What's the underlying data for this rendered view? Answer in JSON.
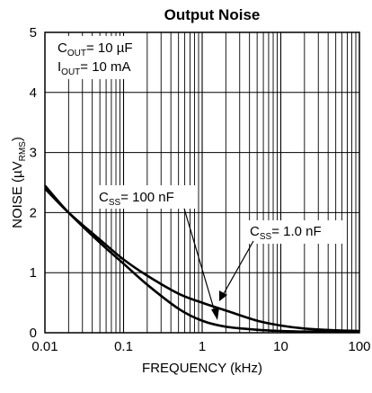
{
  "chart_data": {
    "type": "line",
    "title": "Output Noise",
    "xlabel": "FREQUENCY (kHz)",
    "ylabel": {
      "main": "NOISE (µV",
      "sub": "RMS",
      "end": ")"
    },
    "x_scale": "log",
    "xlim": [
      0.01,
      100
    ],
    "ylim": [
      0,
      5
    ],
    "grid": true,
    "x_ticks": [
      {
        "value": 0.01,
        "label": "0.01"
      },
      {
        "value": 0.1,
        "label": "0.1"
      },
      {
        "value": 1,
        "label": "1"
      },
      {
        "value": 10,
        "label": "10"
      },
      {
        "value": 100,
        "label": "100"
      }
    ],
    "y_ticks": [
      {
        "value": 0,
        "label": "0"
      },
      {
        "value": 1,
        "label": "1"
      },
      {
        "value": 2,
        "label": "2"
      },
      {
        "value": 3,
        "label": "3"
      },
      {
        "value": 4,
        "label": "4"
      },
      {
        "value": 5,
        "label": "5"
      }
    ],
    "conditions": [
      {
        "main": "C",
        "sub": "OUT",
        "rest": "= 10 µF"
      },
      {
        "main": "I",
        "sub": "OUT",
        "rest": "= 10 mA"
      }
    ],
    "series": [
      {
        "name": "C_SS = 100 nF",
        "label": {
          "main": "C",
          "sub": "SS",
          "rest": "= 100 nF"
        },
        "x": [
          0.01,
          0.02,
          0.05,
          0.1,
          0.2,
          0.5,
          1,
          2,
          5,
          10,
          20,
          50,
          100
        ],
        "y": [
          2.45,
          2.0,
          1.5,
          1.15,
          0.8,
          0.4,
          0.2,
          0.1,
          0.05,
          0.03,
          0.02,
          0.02,
          0.02
        ]
      },
      {
        "name": "C_SS = 1.0 nF",
        "label": {
          "main": "C",
          "sub": "SS",
          "rest": "= 1.0 nF"
        },
        "x": [
          0.01,
          0.02,
          0.05,
          0.1,
          0.2,
          0.5,
          1,
          2,
          5,
          10,
          20,
          50,
          100
        ],
        "y": [
          2.4,
          2.0,
          1.55,
          1.22,
          0.95,
          0.65,
          0.5,
          0.37,
          0.2,
          0.12,
          0.07,
          0.04,
          0.03
        ]
      }
    ]
  }
}
